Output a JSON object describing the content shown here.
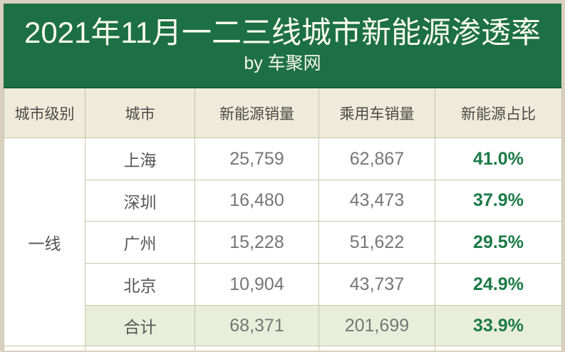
{
  "banner": {
    "title": "2021年11月一二三线城市新能源渗透率",
    "subtitle": "by 车聚网"
  },
  "table": {
    "headers": {
      "tier": "城市级别",
      "city": "城市",
      "nev_sales": "新能源销量",
      "pv_sales": "乘用车销量",
      "nev_share": "新能源占比"
    },
    "tier_label": "一线",
    "rows": [
      {
        "city": "上海",
        "nev_sales": "25,759",
        "pv_sales": "62,867",
        "nev_share": "41.0%"
      },
      {
        "city": "深圳",
        "nev_sales": "16,480",
        "pv_sales": "43,473",
        "nev_share": "37.9%"
      },
      {
        "city": "广州",
        "nev_sales": "15,228",
        "pv_sales": "51,622",
        "nev_share": "29.5%"
      },
      {
        "city": "北京",
        "nev_sales": "10,904",
        "pv_sales": "43,737",
        "nev_share": "24.9%"
      }
    ],
    "total_row": {
      "city": "合计",
      "nev_sales": "68,371",
      "pv_sales": "201,699",
      "nev_share": "33.9%"
    }
  },
  "colors": {
    "banner_green": "#1d7044",
    "banner_text": "#fbfbef",
    "header_bg": "#eeebdb",
    "total_row_bg": "#e9eeda",
    "grid_border": "#c9c6ab",
    "share_green": "#1b7a46",
    "number_gray": "#767676",
    "page_margin": "#d9d0c0"
  }
}
